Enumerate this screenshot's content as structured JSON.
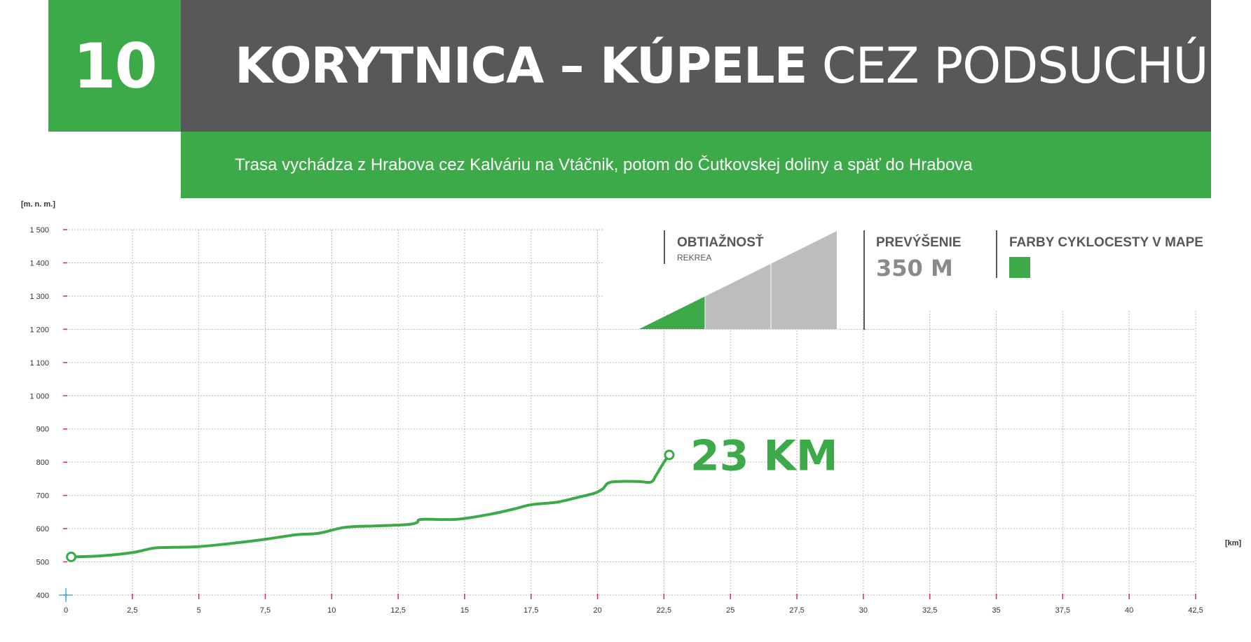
{
  "header": {
    "route_number": "10",
    "title_bold": "KORYTNICA – KÚPELE",
    "title_light": "CEZ PODSUCHÚ",
    "subtitle": "Trasa vychádza z Hrabova cez Kalváriu na Vtáčnik, potom do Čutkovskej doliny a späť do Hrabova"
  },
  "info": {
    "difficulty_label": "OBTIAŽNOSŤ",
    "difficulty_value": "REKREA",
    "difficulty_level": 1,
    "difficulty_levels_total": 3,
    "elevation_gain_label": "PREVÝŠENIE",
    "elevation_gain_value": "350 M",
    "map_color_label": "FARBY CYKLOCESTY V MAPE",
    "map_color": "#3daa49"
  },
  "colors": {
    "accent": "#3daa49",
    "header_dark": "#58585a",
    "difficulty_gray": "#bdbdc0",
    "y_tick_mark": "#d22e5a",
    "x_tick_mark": "#d22e5a",
    "origin_cross": "#3fb8d8"
  },
  "chart_data": {
    "type": "line",
    "title": "",
    "xlabel": "[km]",
    "ylabel": "[m. n. m.]",
    "xlim": [
      0,
      42.5
    ],
    "ylim": [
      400,
      1500
    ],
    "x_ticks": [
      "0",
      "2,5",
      "5",
      "7,5",
      "10",
      "12,5",
      "15",
      "17,5",
      "20",
      "22,5",
      "25",
      "27,5",
      "30",
      "32,5",
      "35",
      "37,5",
      "40",
      "42,5"
    ],
    "x_tick_values": [
      0,
      2.5,
      5,
      7.5,
      10,
      12.5,
      15,
      17.5,
      20,
      22.5,
      25,
      27.5,
      30,
      32.5,
      35,
      37.5,
      40,
      42.5
    ],
    "y_ticks": [
      "400",
      "500",
      "600",
      "700",
      "800",
      "900",
      "1 000",
      "1 100",
      "1 200",
      "1 300",
      "1 400",
      "1 500"
    ],
    "y_tick_values": [
      400,
      500,
      600,
      700,
      800,
      900,
      1000,
      1100,
      1200,
      1300,
      1400,
      1500
    ],
    "grid": true,
    "series": [
      {
        "x": [
          0.2,
          1.3,
          2.5,
          3.2,
          3.6,
          5.0,
          6.5,
          7.5,
          8.7,
          9.5,
          10.5,
          11.6,
          12.8,
          13.2,
          13.4,
          14.7,
          16.0,
          16.9,
          17.5,
          18.5,
          19.3,
          19.9,
          20.2,
          20.5,
          21.5,
          22.0,
          22.2,
          22.5,
          22.7
        ],
        "y": [
          515,
          518,
          528,
          540,
          543,
          546,
          558,
          568,
          582,
          586,
          604,
          608,
          612,
          618,
          628,
          628,
          644,
          660,
          672,
          680,
          695,
          707,
          720,
          740,
          742,
          740,
          760,
          800,
          822
        ]
      }
    ],
    "start_x": 0.2,
    "end_x": 22.7,
    "distance_label": "23 KM"
  }
}
